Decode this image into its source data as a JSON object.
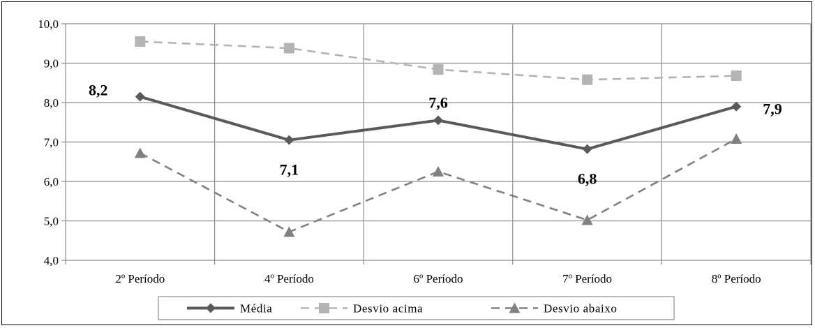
{
  "chart_data": {
    "type": "line",
    "categories": [
      "2º Período",
      "4º Período",
      "6º Período",
      "7º Período",
      "8º Período"
    ],
    "ylim": [
      4.0,
      10.0
    ],
    "yticks": [
      "4,0",
      "5,0",
      "6,0",
      "7,0",
      "8,0",
      "9,0",
      "10,0"
    ],
    "grid": true,
    "legend_position": "bottom",
    "series": [
      {
        "name": "Média",
        "values": [
          8.15,
          7.05,
          7.55,
          6.82,
          7.9
        ],
        "data_labels": [
          "8,2",
          "7,1",
          "7,6",
          "6,8",
          "7,9"
        ],
        "color": "#5a5a5a",
        "line_style": "solid",
        "marker": "diamond"
      },
      {
        "name": "Desvio acima",
        "values": [
          9.55,
          9.38,
          8.84,
          8.58,
          8.68
        ],
        "color": "#b3b3b3",
        "line_style": "dashed",
        "marker": "square"
      },
      {
        "name": "Desvio abaixo",
        "values": [
          6.72,
          4.72,
          6.25,
          5.02,
          7.08
        ],
        "color": "#808080",
        "line_style": "dashed",
        "marker": "triangle"
      }
    ]
  }
}
